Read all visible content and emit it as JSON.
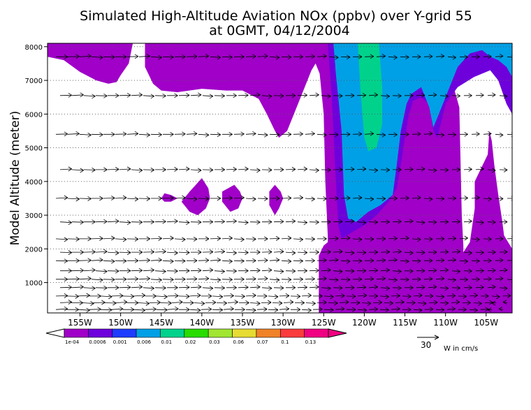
{
  "chart_data": {
    "type": "heatmap",
    "title": "Simulated High-Altitude Aviation NOx (ppbv) over Y-grid 55",
    "subtitle": "at 0GMT, 04/12/2004",
    "ylabel": "Model Altitude (meter)",
    "x_ticks": [
      "155W",
      "150W",
      "145W",
      "140W",
      "135W",
      "130W",
      "125W",
      "120W",
      "115W",
      "110W",
      "105W"
    ],
    "x_tick_values": [
      -155,
      -150,
      -145,
      -140,
      -135,
      -130,
      -125,
      -120,
      -115,
      -110,
      -105
    ],
    "xlim": [
      -159,
      -101.8
    ],
    "y_ticks": [
      "1000",
      "2000",
      "3000",
      "4000",
      "5000",
      "6000",
      "7000",
      "8000"
    ],
    "y_tick_values": [
      1000,
      2000,
      3000,
      4000,
      5000,
      6000,
      7000,
      8000
    ],
    "ylim": [
      100,
      8100
    ],
    "grid": "dotted horizontal",
    "colorbar": {
      "labels": [
        "1e-04",
        "0.0006",
        "0.001",
        "0.006",
        "0.01",
        "0.02",
        "0.03",
        "0.06",
        "0.07",
        "0.1",
        "0.13"
      ],
      "colors": [
        "#a000c8",
        "#6e00dc",
        "#1e3cff",
        "#00a0e6",
        "#00d28c",
        "#28dc00",
        "#a0e632",
        "#e6dc32",
        "#f08228",
        "#fa3c3c",
        "#f00082"
      ]
    },
    "vector_legend": {
      "value": "30",
      "label": "W in cm/s"
    },
    "series": [
      {
        "level": "1e-04 to 0.0006",
        "color": "#a000c8",
        "regions": [
          [
            [
              -159,
              8100
            ],
            [
              -159,
              7700
            ],
            [
              -157,
              7600
            ],
            [
              -155,
              7250
            ],
            [
              -153,
              7000
            ],
            [
              -151.5,
              6900
            ],
            [
              -150.5,
              6950
            ],
            [
              -150,
              7150
            ],
            [
              -149,
              7500
            ],
            [
              -148.5,
              8100
            ]
          ],
          [
            [
              -147,
              8100
            ],
            [
              -147,
              7400
            ],
            [
              -146,
              6900
            ],
            [
              -145,
              6700
            ],
            [
              -143,
              6650
            ],
            [
              -140,
              6750
            ],
            [
              -137,
              6700
            ],
            [
              -135,
              6700
            ],
            [
              -133,
              6450
            ],
            [
              -132,
              6000
            ],
            [
              -131,
              5500
            ],
            [
              -130.5,
              5300
            ],
            [
              -129.5,
              5500
            ],
            [
              -128.5,
              6100
            ],
            [
              -127.5,
              6700
            ],
            [
              -126.5,
              7300
            ],
            [
              -126,
              7500
            ],
            [
              -125.5,
              7200
            ],
            [
              -125,
              6000
            ],
            [
              -124.8,
              4000
            ],
            [
              -124.5,
              2400
            ],
            [
              -124.5,
              2200
            ],
            [
              -125,
              2100
            ],
            [
              -125.6,
              1800
            ],
            [
              -125.6,
              100
            ],
            [
              -101.8,
              100
            ],
            [
              -101.8,
              2000
            ],
            [
              -102.8,
              2400
            ],
            [
              -103,
              2800
            ],
            [
              -103.5,
              3600
            ],
            [
              -104,
              4500
            ],
            [
              -104.3,
              5200
            ],
            [
              -104.6,
              5500
            ],
            [
              -104.8,
              4800
            ],
            [
              -105.6,
              4400
            ],
            [
              -106.4,
              4000
            ],
            [
              -106.4,
              3200
            ],
            [
              -107,
              2200
            ],
            [
              -107.8,
              1900
            ],
            [
              -107.8,
              2100
            ],
            [
              -108,
              3000
            ],
            [
              -108.3,
              6200
            ],
            [
              -109,
              6800
            ],
            [
              -110.5,
              7000
            ],
            [
              -111.5,
              7000
            ],
            [
              -112.5,
              6700
            ],
            [
              -113.5,
              6600
            ],
            [
              -116,
              6400
            ],
            [
              -116.5,
              6500
            ],
            [
              -118,
              7400
            ],
            [
              -121,
              7800
            ],
            [
              -123,
              8000
            ],
            [
              -123.5,
              8100
            ]
          ],
          [
            [
              -140,
              4100
            ],
            [
              -139.2,
              3800
            ],
            [
              -139,
              3500
            ],
            [
              -139.5,
              3200
            ],
            [
              -140.5,
              3000
            ],
            [
              -141.5,
              3100
            ],
            [
              -142.5,
              3400
            ],
            [
              -141.5,
              3700
            ]
          ],
          [
            [
              -144.6,
              3650
            ],
            [
              -143.8,
              3600
            ],
            [
              -143,
              3500
            ],
            [
              -143.8,
              3400
            ],
            [
              -144.6,
              3400
            ],
            [
              -145,
              3500
            ]
          ],
          [
            [
              -136,
              3900
            ],
            [
              -135.3,
              3700
            ],
            [
              -135,
              3500
            ],
            [
              -135.5,
              3200
            ],
            [
              -136.5,
              3100
            ],
            [
              -137.5,
              3400
            ],
            [
              -137.5,
              3700
            ]
          ],
          [
            [
              -131,
              3900
            ],
            [
              -130.3,
              3700
            ],
            [
              -130,
              3500
            ],
            [
              -130.5,
              3200
            ],
            [
              -131,
              3000
            ],
            [
              -131.7,
              3300
            ],
            [
              -131.7,
              3700
            ]
          ]
        ]
      },
      {
        "level": "0.0006 to 0.001",
        "color": "#6e00dc",
        "regions": [
          [
            [
              -124.5,
              8100
            ],
            [
              -124,
              6500
            ],
            [
              -123.5,
              4000
            ],
            [
              -123.2,
              2700
            ],
            [
              -122.8,
              2300
            ],
            [
              -121.5,
              2500
            ],
            [
              -120,
              2700
            ],
            [
              -118.5,
              3000
            ],
            [
              -117,
              3400
            ],
            [
              -116,
              3800
            ],
            [
              -115.5,
              4500
            ],
            [
              -115,
              5300
            ],
            [
              -114.5,
              6000
            ],
            [
              -114,
              6400
            ],
            [
              -113,
              6500
            ],
            [
              -112,
              6300
            ],
            [
              -111.5,
              5500
            ],
            [
              -111,
              5300
            ],
            [
              -110.5,
              5800
            ],
            [
              -110,
              6300
            ],
            [
              -108.5,
              6800
            ],
            [
              -106.5,
              7100
            ],
            [
              -104.5,
              7300
            ],
            [
              -103.5,
              7000
            ],
            [
              -102.5,
              6300
            ],
            [
              -101.8,
              6000
            ],
            [
              -101.8,
              8100
            ]
          ]
        ]
      },
      {
        "level": "0.001 to 0.006",
        "color": "#1e3cff",
        "regions": []
      },
      {
        "level": "0.006 to 0.01",
        "color": "#00a0e6",
        "regions": [
          [
            [
              -123.8,
              8100
            ],
            [
              -123.5,
              7200
            ],
            [
              -122.8,
              5500
            ],
            [
              -122.5,
              3600
            ],
            [
              -122,
              2900
            ],
            [
              -121,
              2800
            ],
            [
              -119.5,
              3100
            ],
            [
              -118,
              3300
            ],
            [
              -116.5,
              3600
            ],
            [
              -116,
              4500
            ],
            [
              -115.5,
              5500
            ],
            [
              -114.8,
              6300
            ],
            [
              -114.2,
              6600
            ],
            [
              -113,
              6800
            ],
            [
              -112,
              6200
            ],
            [
              -111.5,
              5600
            ],
            [
              -110.5,
              6200
            ],
            [
              -109.5,
              6800
            ],
            [
              -108.5,
              7400
            ],
            [
              -107,
              7800
            ],
            [
              -105.5,
              7900
            ],
            [
              -104.5,
              7700
            ],
            [
              -103.5,
              7600
            ],
            [
              -102.5,
              7400
            ],
            [
              -101.8,
              7100
            ],
            [
              -101.8,
              8100
            ]
          ]
        ]
      },
      {
        "level": "0.01 to 0.02",
        "color": "#00d28c",
        "regions": [
          [
            [
              -120.8,
              8100
            ],
            [
              -120.5,
              6800
            ],
            [
              -120,
              5300
            ],
            [
              -119.5,
              4900
            ],
            [
              -118.5,
              5000
            ],
            [
              -117.8,
              5700
            ],
            [
              -117.8,
              6800
            ],
            [
              -118.2,
              8100
            ]
          ]
        ]
      }
    ],
    "wind_levels_m": [
      200,
      400,
      600,
      850,
      1100,
      1350,
      1650,
      1900,
      2300,
      2800,
      3500,
      4350,
      5400,
      6550,
      7700
    ]
  }
}
